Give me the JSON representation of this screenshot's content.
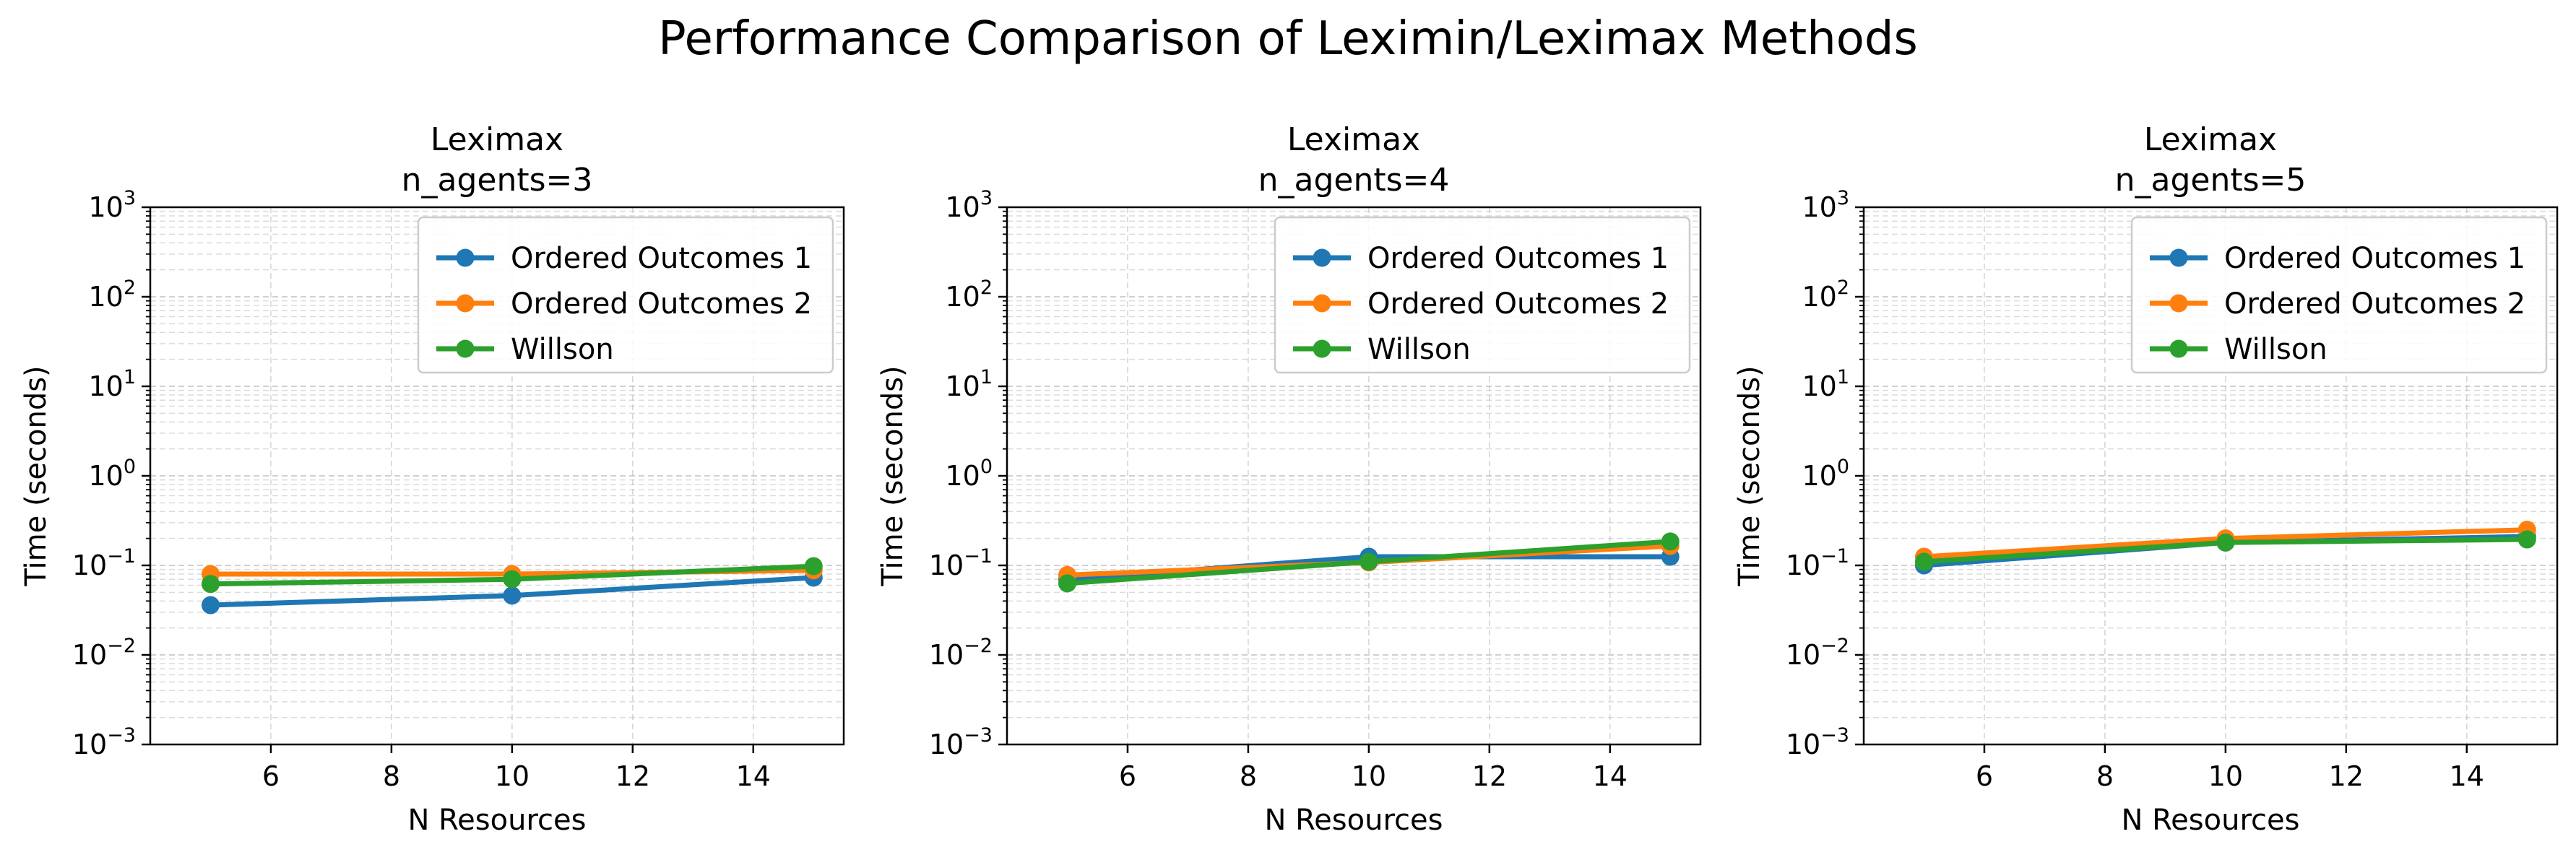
{
  "figure": {
    "title": "Performance Comparison of Leximin/Leximax Methods"
  },
  "colors": {
    "series": [
      "#1f77b4",
      "#ff7f0e",
      "#2ca02c"
    ],
    "grid": "#b0b0b0",
    "legend_border": "#cccccc"
  },
  "chart_data": [
    {
      "type": "line",
      "title": "Leximax\nn_agents=3",
      "title_lines": [
        "Leximax",
        "n_agents=3"
      ],
      "xlabel": "N Resources",
      "ylabel": "Time (seconds)",
      "x": [
        5,
        10,
        15
      ],
      "xlim": [
        4,
        15.5
      ],
      "xticks": [
        6,
        8,
        10,
        12,
        14
      ],
      "yscale": "log",
      "ylim": [
        0.001,
        1000
      ],
      "yticks": [
        {
          "base": "10",
          "exp": "−3"
        },
        {
          "base": "10",
          "exp": "−2"
        },
        {
          "base": "10",
          "exp": "−1"
        },
        {
          "base": "10",
          "exp": "0"
        },
        {
          "base": "10",
          "exp": "1"
        },
        {
          "base": "10",
          "exp": "2"
        },
        {
          "base": "10",
          "exp": "3"
        }
      ],
      "grid": true,
      "legend": "upper right",
      "series": [
        {
          "name": "Ordered Outcomes 1",
          "values": [
            0.036,
            0.046,
            0.073
          ]
        },
        {
          "name": "Ordered Outcomes 2",
          "values": [
            0.08,
            0.08,
            0.088
          ]
        },
        {
          "name": "Willson",
          "values": [
            0.062,
            0.07,
            0.098
          ]
        }
      ]
    },
    {
      "type": "line",
      "title": "Leximax\nn_agents=4",
      "title_lines": [
        "Leximax",
        "n_agents=4"
      ],
      "xlabel": "N Resources",
      "ylabel": "Time (seconds)",
      "x": [
        5,
        10,
        15
      ],
      "xlim": [
        4,
        15.5
      ],
      "xticks": [
        6,
        8,
        10,
        12,
        14
      ],
      "yscale": "log",
      "ylim": [
        0.001,
        1000
      ],
      "yticks": [
        {
          "base": "10",
          "exp": "−3"
        },
        {
          "base": "10",
          "exp": "−2"
        },
        {
          "base": "10",
          "exp": "−1"
        },
        {
          "base": "10",
          "exp": "0"
        },
        {
          "base": "10",
          "exp": "1"
        },
        {
          "base": "10",
          "exp": "2"
        },
        {
          "base": "10",
          "exp": "3"
        }
      ],
      "grid": true,
      "legend": "upper right",
      "series": [
        {
          "name": "Ordered Outcomes 1",
          "values": [
            0.07,
            0.125,
            0.125
          ]
        },
        {
          "name": "Ordered Outcomes 2",
          "values": [
            0.078,
            0.108,
            0.165
          ]
        },
        {
          "name": "Willson",
          "values": [
            0.063,
            0.11,
            0.185
          ]
        }
      ]
    },
    {
      "type": "line",
      "title": "Leximax\nn_agents=5",
      "title_lines": [
        "Leximax",
        "n_agents=5"
      ],
      "xlabel": "N Resources",
      "ylabel": "Time (seconds)",
      "x": [
        5,
        10,
        15
      ],
      "xlim": [
        4,
        15.5
      ],
      "xticks": [
        6,
        8,
        10,
        12,
        14
      ],
      "yscale": "log",
      "ylim": [
        0.001,
        1000
      ],
      "yticks": [
        {
          "base": "10",
          "exp": "−3"
        },
        {
          "base": "10",
          "exp": "−2"
        },
        {
          "base": "10",
          "exp": "−1"
        },
        {
          "base": "10",
          "exp": "0"
        },
        {
          "base": "10",
          "exp": "1"
        },
        {
          "base": "10",
          "exp": "2"
        },
        {
          "base": "10",
          "exp": "3"
        }
      ],
      "grid": true,
      "legend": "upper right",
      "series": [
        {
          "name": "Ordered Outcomes 1",
          "values": [
            0.1,
            0.18,
            0.21
          ]
        },
        {
          "name": "Ordered Outcomes 2",
          "values": [
            0.125,
            0.2,
            0.25
          ]
        },
        {
          "name": "Willson",
          "values": [
            0.11,
            0.18,
            0.195
          ]
        }
      ]
    }
  ]
}
